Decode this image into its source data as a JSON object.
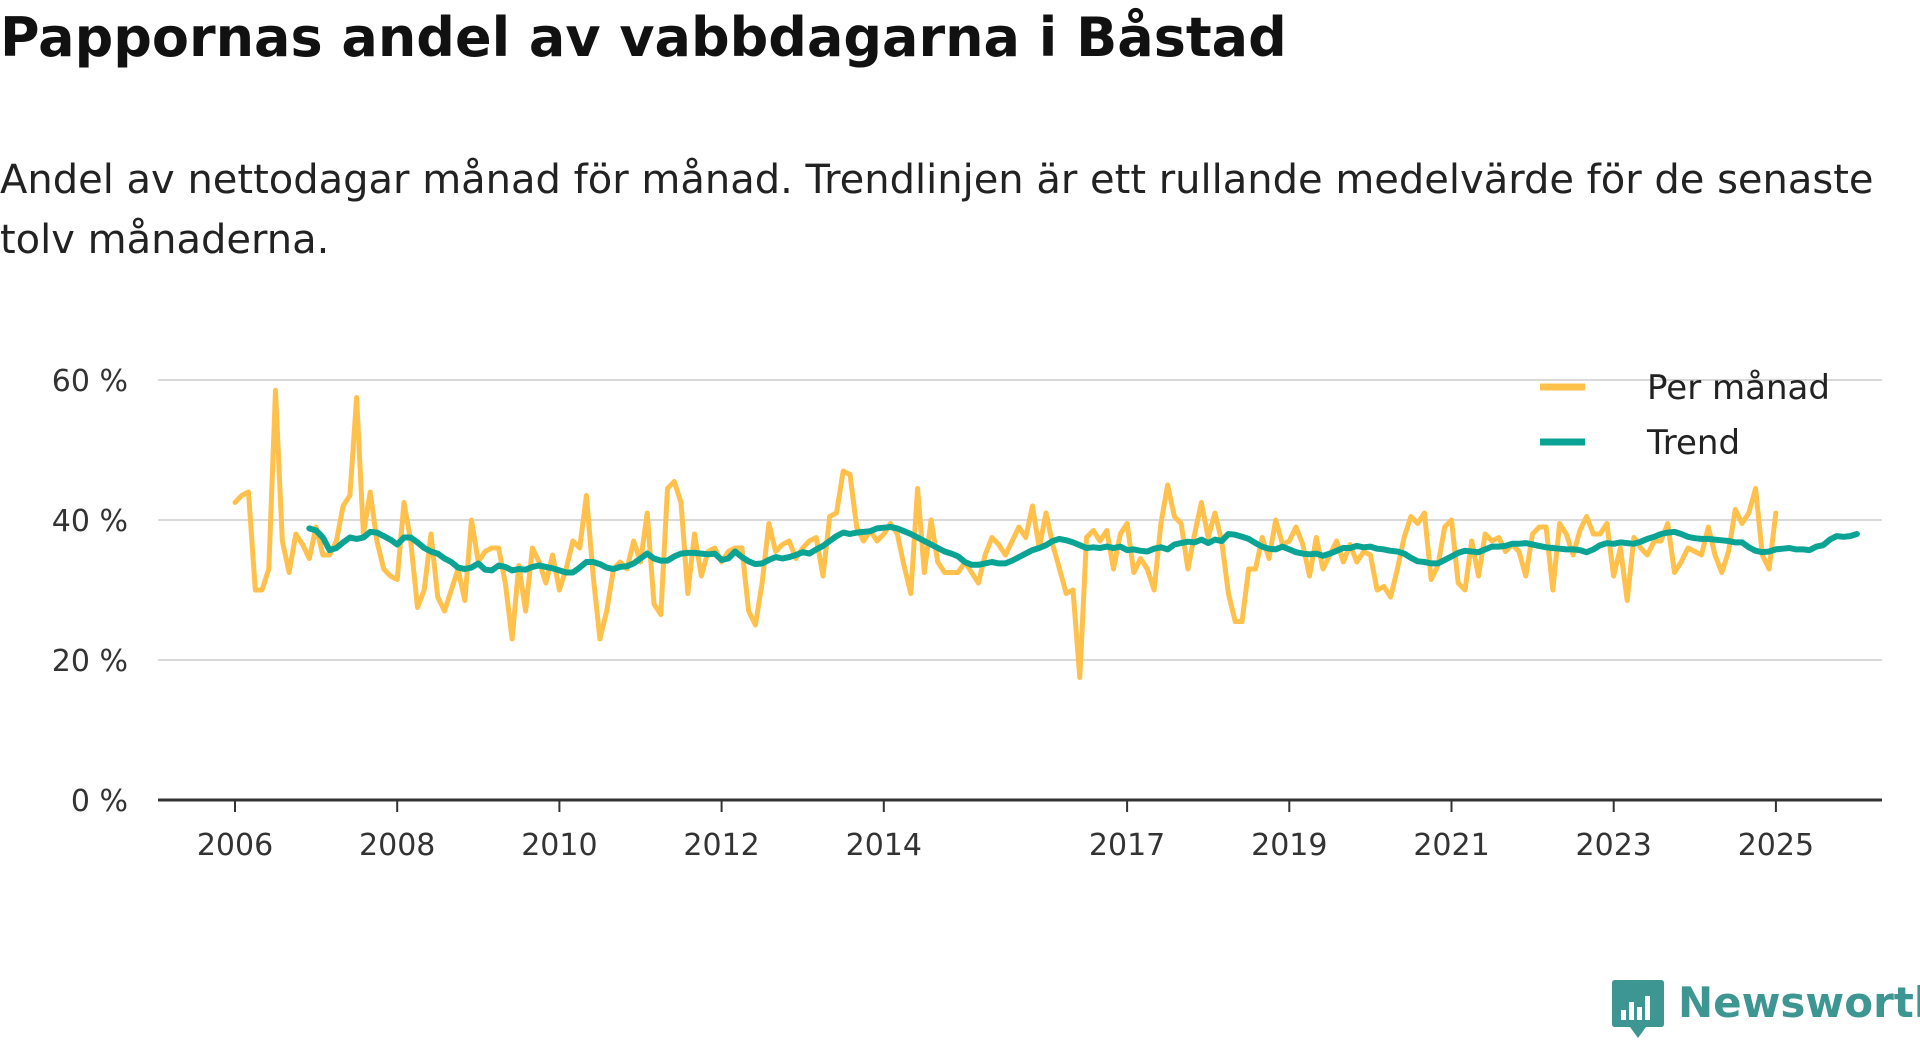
{
  "title": "Pappornas andel av vabbdagarna i Båstad",
  "subtitle": "Andel av nettodagar månad för månad. Trendlinjen är ett rullande medelvärde för de senaste tolv månaderna.",
  "brand": {
    "name": "Newsworthy",
    "color": "#3d9691"
  },
  "colors": {
    "monthly": "#ffc04c",
    "trend": "#0aa394",
    "grid": "#d9d9d9",
    "axis": "#333333"
  },
  "chart_data": {
    "type": "line",
    "title": "Pappornas andel av vabbdagarna i Båstad",
    "xlabel": "",
    "ylabel": "",
    "ylim": [
      0,
      60
    ],
    "xlim": [
      2006,
      2026.35
    ],
    "y_ticks": [
      0,
      20,
      40,
      60
    ],
    "y_tick_labels": [
      "0 %",
      "20 %",
      "40 %",
      "60 %"
    ],
    "x_ticks": [
      2006,
      2008,
      2010,
      2012,
      2014,
      2017,
      2019,
      2021,
      2023,
      2025
    ],
    "x_tick_labels": [
      "2006",
      "2008",
      "2010",
      "2012",
      "2014",
      "2017",
      "2019",
      "2021",
      "2023",
      "2025"
    ],
    "legend": {
      "placement": "top-right",
      "entries": [
        "Per månad",
        "Trend"
      ]
    },
    "series": [
      {
        "name": "Per månad",
        "color": "#ffc04c",
        "start": 2006.0,
        "step": 0.08333,
        "values": [
          42.5,
          43.5,
          44,
          30,
          30,
          33,
          58.5,
          37,
          32.5,
          38,
          36.5,
          34.5,
          39,
          35,
          35,
          37,
          42,
          43.5,
          57.5,
          38,
          44,
          37,
          33,
          32,
          31.5,
          42.5,
          37,
          27.5,
          30,
          38,
          29,
          27,
          30,
          33,
          28.5,
          40,
          34,
          35.5,
          36,
          36,
          31,
          23,
          33.5,
          27,
          36,
          34,
          31,
          35,
          30,
          33,
          37,
          36,
          43.5,
          32,
          23,
          27,
          33,
          34,
          33,
          37,
          34,
          41,
          28,
          26.5,
          44.5,
          45.5,
          42.5,
          29.5,
          38,
          32,
          35.5,
          36,
          34,
          35.5,
          36,
          36,
          27,
          25,
          31,
          39.5,
          35.5,
          36.5,
          37,
          34.5,
          36,
          37,
          37.5,
          32,
          40.5,
          41,
          47,
          46.5,
          39,
          37,
          38.5,
          37,
          38,
          39.5,
          38,
          33.5,
          29.5,
          44.5,
          32.5,
          40,
          34,
          32.5,
          32.5,
          32.5,
          34,
          32.5,
          31,
          35,
          37.5,
          36.5,
          35,
          37,
          39,
          37.5,
          42,
          36,
          41,
          36.5,
          33,
          29.5,
          30,
          17.5,
          37.5,
          38.5,
          37,
          38.5,
          33,
          38,
          39.5,
          32.5,
          34.5,
          33,
          30,
          39.5,
          45,
          40.5,
          39.5,
          33,
          38,
          42.5,
          37.5,
          41,
          37,
          29.5,
          25.5,
          25.5,
          33,
          33,
          37.5,
          34.5,
          40,
          36.5,
          37,
          39,
          36.5,
          32,
          37.5,
          33,
          35,
          37,
          34,
          36.5,
          34,
          35.5,
          35,
          30,
          30.5,
          29,
          33,
          37.5,
          40.5,
          39.5,
          41,
          31.5,
          33.5,
          39,
          40,
          31,
          30,
          37,
          32,
          38,
          37,
          37.5,
          35.5,
          36.5,
          35.5,
          32,
          38,
          39,
          39,
          30,
          39.5,
          38,
          35,
          38.5,
          40.5,
          38,
          38,
          39.5,
          32,
          36,
          28.5,
          37.5,
          36,
          35,
          37,
          37,
          39.5,
          32.5,
          34,
          36,
          35.5,
          35,
          39,
          35,
          32.5,
          35.5,
          41.5,
          39.5,
          41,
          44.5,
          35,
          33,
          41
        ]
      },
      {
        "name": "Trend",
        "color": "#0aa394",
        "start": 2006.9167,
        "step": 0.08333,
        "values": [
          38.8,
          38.5,
          37.5,
          35.7,
          36,
          36.8,
          37.5,
          37.3,
          37.5,
          38.3,
          38.2,
          37.7,
          37.2,
          36.5,
          37.5,
          37.5,
          36.8,
          36,
          35.5,
          35.2,
          34.5,
          34,
          33.2,
          33,
          33.2,
          33.8,
          32.9,
          32.8,
          33.5,
          33.3,
          32.8,
          33,
          32.9,
          33.3,
          33.5,
          33.3,
          33.1,
          32.8,
          32.5,
          32.5,
          33.2,
          34,
          34,
          33.7,
          33.2,
          33,
          33.3,
          33.4,
          33.8,
          34.5,
          35.2,
          34.5,
          34.2,
          34.2,
          34.8,
          35.2,
          35.3,
          35.3,
          35.2,
          35.1,
          35.2,
          34.3,
          34.5,
          35.5,
          34.7,
          34.1,
          33.7,
          33.8,
          34.3,
          34.7,
          34.5,
          34.7,
          35,
          35.4,
          35.2,
          35.8,
          36.3,
          37,
          37.7,
          38.2,
          38,
          38.2,
          38.3,
          38.4,
          38.8,
          38.9,
          39,
          38.8,
          38.4,
          38,
          37.5,
          37,
          36.5,
          36,
          35.5,
          35.2,
          34.8,
          34,
          33.6,
          33.6,
          33.8,
          34,
          33.8,
          33.8,
          34.2,
          34.7,
          35.2,
          35.7,
          36,
          36.4,
          37,
          37.3,
          37.1,
          36.8,
          36.4,
          36,
          36.1,
          36,
          36.2,
          36,
          36.2,
          35.7,
          35.8,
          35.6,
          35.5,
          35.9,
          36.1,
          35.8,
          36.5,
          36.7,
          36.9,
          36.8,
          37.2,
          36.7,
          37.2,
          37,
          38,
          37.9,
          37.6,
          37.3,
          36.7,
          36.2,
          35.9,
          35.8,
          36.2,
          35.8,
          35.4,
          35.2,
          35.1,
          35.2,
          34.9,
          35.2,
          35.6,
          36,
          36,
          36.3,
          36.1,
          36.2,
          35.9,
          35.8,
          35.6,
          35.5,
          35.2,
          34.6,
          34.1,
          34,
          33.8,
          33.8,
          34.3,
          34.8,
          35.3,
          35.6,
          35.5,
          35.4,
          35.8,
          36.2,
          36.2,
          36.3,
          36.6,
          36.6,
          36.7,
          36.5,
          36.3,
          36.1,
          36,
          35.9,
          35.8,
          35.8,
          35.7,
          35.4,
          35.8,
          36.4,
          36.7,
          36.6,
          36.8,
          36.7,
          36.6,
          36.9,
          37.3,
          37.6,
          38,
          38.2,
          38.3,
          38,
          37.6,
          37.4,
          37.3,
          37.3,
          37.2,
          37.1,
          37,
          36.8,
          36.8,
          36.1,
          35.6,
          35.4,
          35.5,
          35.8,
          35.9,
          36,
          35.8,
          35.8,
          35.7,
          36.2,
          36.4,
          37.2,
          37.7,
          37.6,
          37.7,
          38
        ]
      }
    ]
  }
}
